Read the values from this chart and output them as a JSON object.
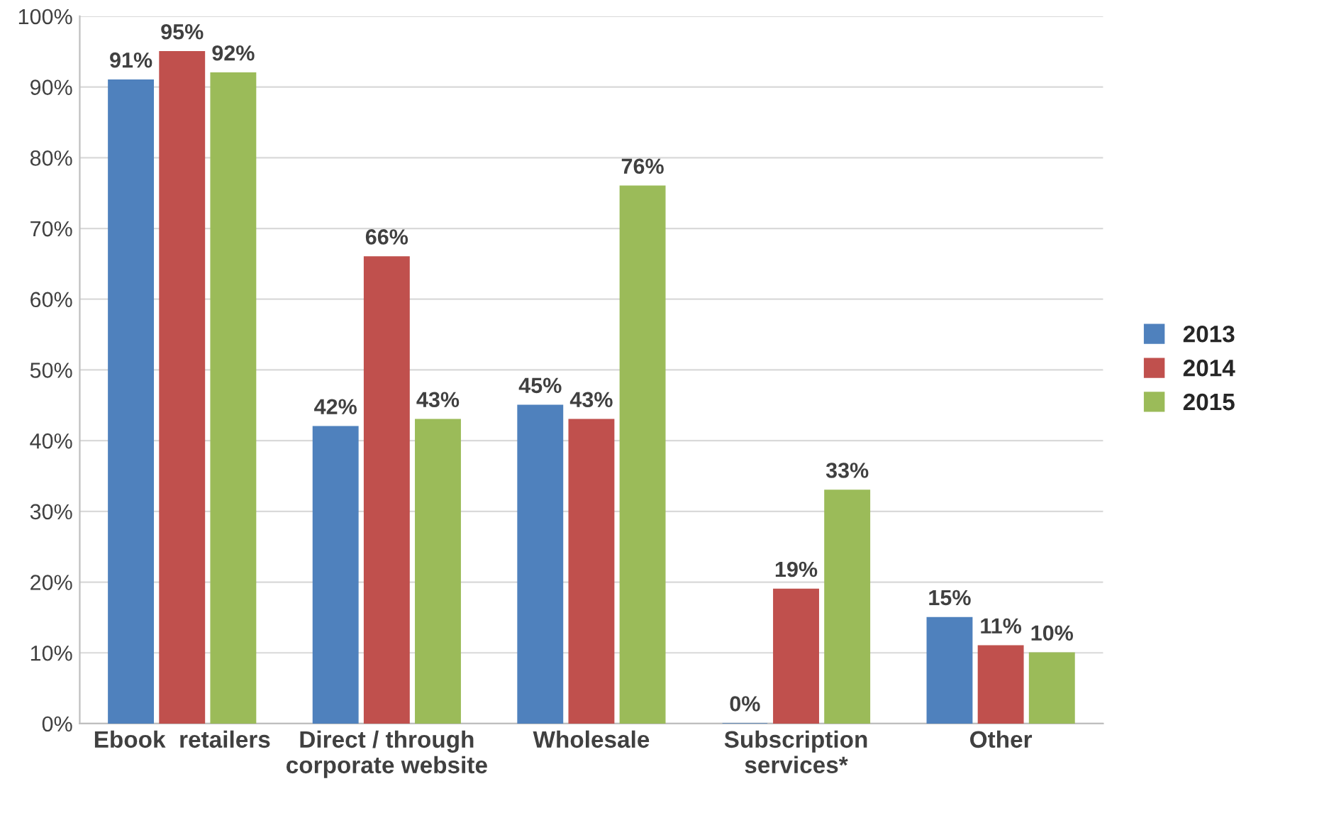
{
  "chart_data": {
    "type": "bar",
    "categories": [
      "Ebook  retailers",
      "Direct / through\ncorporate website",
      "Wholesale",
      "Subscription\nservices*",
      "Other"
    ],
    "series": [
      {
        "name": "2013",
        "color": "#4f81bd",
        "values": [
          91,
          42,
          45,
          0,
          15
        ],
        "value_labels": [
          "91%",
          "42%",
          "45%",
          "0%",
          "15%"
        ]
      },
      {
        "name": "2014",
        "color": "#c0504d",
        "values": [
          95,
          66,
          43,
          19,
          11
        ],
        "value_labels": [
          "95%",
          "66%",
          "43%",
          "19%",
          "11%"
        ]
      },
      {
        "name": "2015",
        "color": "#9bbb59",
        "values": [
          92,
          43,
          76,
          33,
          10
        ],
        "value_labels": [
          "92%",
          "43%",
          "76%",
          "33%",
          "10%"
        ]
      }
    ],
    "ylim": [
      0,
      100
    ],
    "yticks": [
      {
        "value": 0,
        "label": "0%"
      },
      {
        "value": 10,
        "label": "10%"
      },
      {
        "value": 20,
        "label": "20%"
      },
      {
        "value": 30,
        "label": "30%"
      },
      {
        "value": 40,
        "label": "40%"
      },
      {
        "value": 50,
        "label": "50%"
      },
      {
        "value": 60,
        "label": "60%"
      },
      {
        "value": 70,
        "label": "70%"
      },
      {
        "value": 80,
        "label": "80%"
      },
      {
        "value": 90,
        "label": "90%"
      },
      {
        "value": 100,
        "label": "100%"
      }
    ],
    "grid": "y",
    "legend": "right"
  }
}
